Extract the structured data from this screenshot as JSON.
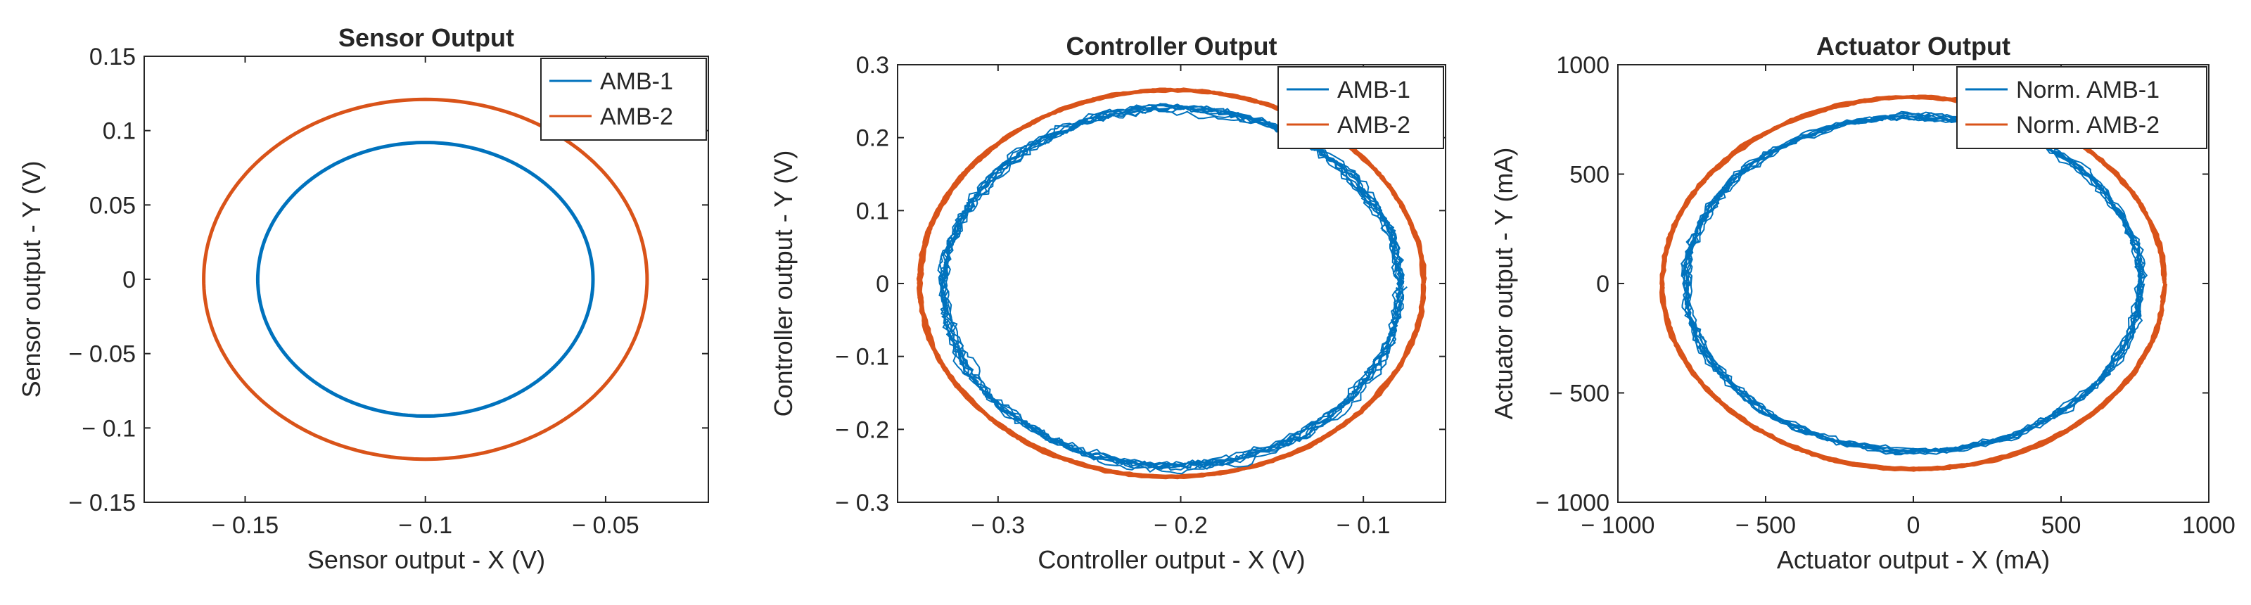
{
  "chart_data": [
    {
      "type": "line",
      "title": "Sensor Output",
      "xlabel": "Sensor output - X (V)",
      "ylabel": "Sensor output - Y (V)",
      "xlim": [
        -0.178,
        -0.0215
      ],
      "ylim": [
        -0.15,
        0.15
      ],
      "xticks": [
        -0.15,
        -0.1,
        -0.05
      ],
      "xtick_labels": [
        "− 0.15",
        "− 0.1",
        "− 0.05"
      ],
      "yticks": [
        0.15,
        0.1,
        0.05,
        0,
        -0.05,
        -0.1,
        -0.15
      ],
      "ytick_labels": [
        "0.15",
        "0.1",
        "0.05",
        "0",
        "− 0.05",
        "− 0.1",
        "− 0.15"
      ],
      "legend": "top-right",
      "series": [
        {
          "name": "AMB-1",
          "color": "#0072BD",
          "center": [
            -0.1,
            0.0
          ],
          "radius_x": 0.0465,
          "radius_y": 0.092,
          "noise": 0.0
        },
        {
          "name": "AMB-2",
          "color": "#D95319",
          "center": [
            -0.1,
            0.0
          ],
          "radius_x": 0.0615,
          "radius_y": 0.121,
          "noise": 0.0
        }
      ]
    },
    {
      "type": "line",
      "title": "Controller Output",
      "xlabel": "Controller output - X (V)",
      "ylabel": "Controller output - Y (V)",
      "xlim": [
        -0.355,
        -0.055
      ],
      "ylim": [
        -0.3,
        0.3
      ],
      "xticks": [
        -0.3,
        -0.2,
        -0.1
      ],
      "xtick_labels": [
        "− 0.3",
        "− 0.2",
        "− 0.1"
      ],
      "yticks": [
        0.3,
        0.2,
        0.1,
        0,
        -0.1,
        -0.2,
        -0.3
      ],
      "ytick_labels": [
        "0.3",
        "0.2",
        "0.1",
        "0",
        "− 0.1",
        "− 0.2",
        "− 0.3"
      ],
      "legend": "top-right",
      "series": [
        {
          "name": "AMB-1",
          "color": "#0072BD",
          "center": [
            -0.205,
            -0.005
          ],
          "radius_x": 0.125,
          "radius_y": 0.245,
          "noise": 0.045
        },
        {
          "name": "AMB-2",
          "color": "#D95319",
          "center": [
            -0.205,
            0.0
          ],
          "radius_x": 0.138,
          "radius_y": 0.265,
          "noise": 0.012
        }
      ]
    },
    {
      "type": "line",
      "title": "Actuator Output",
      "xlabel": "Actuator output - X (mA)",
      "ylabel": "Actuator output - Y (mA)",
      "xlim": [
        -1000,
        1000
      ],
      "ylim": [
        -1000,
        1000
      ],
      "xticks": [
        -1000,
        -500,
        0,
        500,
        1000
      ],
      "xtick_labels": [
        "− 1000",
        "− 500",
        "0",
        "500",
        "1000"
      ],
      "yticks": [
        1000,
        500,
        0,
        -500,
        -1000
      ],
      "ytick_labels": [
        "1000",
        "500",
        "0",
        "− 500",
        "− 1000"
      ],
      "legend": "top-right",
      "series": [
        {
          "name": "Norm. AMB-1",
          "color": "#0072BD",
          "center": [
            0,
            0
          ],
          "radius_x": 770,
          "radius_y": 765,
          "noise": 0.035
        },
        {
          "name": "Norm. AMB-2",
          "color": "#D95319",
          "center": [
            0,
            0
          ],
          "radius_x": 850,
          "radius_y": 850,
          "noise": 0.012
        }
      ]
    }
  ]
}
